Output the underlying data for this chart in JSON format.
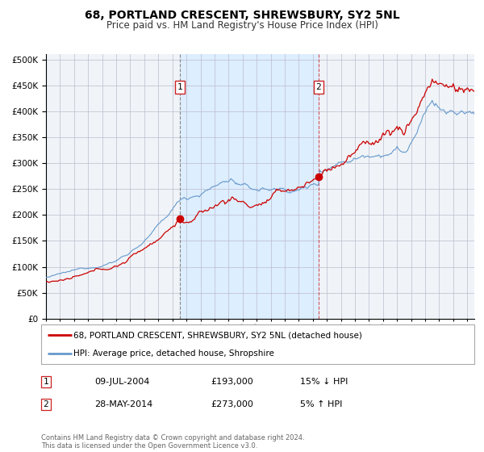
{
  "title": "68, PORTLAND CRESCENT, SHREWSBURY, SY2 5NL",
  "subtitle": "Price paid vs. HM Land Registry's House Price Index (HPI)",
  "legend_property": "68, PORTLAND CRESCENT, SHREWSBURY, SY2 5NL (detached house)",
  "legend_hpi": "HPI: Average price, detached house, Shropshire",
  "sale1_date": "09-JUL-2004",
  "sale1_price": 193000,
  "sale1_hpi_rel": "15% ↓ HPI",
  "sale1_x": 2004.52,
  "sale2_date": "28-MAY-2014",
  "sale2_price": 273000,
  "sale2_hpi_rel": "5% ↑ HPI",
  "sale2_x": 2014.41,
  "property_color": "#cc0000",
  "hpi_color": "#6699cc",
  "shade_color": "#ddeeff",
  "xlim": [
    1995,
    2025.5
  ],
  "ylim": [
    0,
    510000
  ],
  "yticks": [
    0,
    50000,
    100000,
    150000,
    200000,
    250000,
    300000,
    350000,
    400000,
    450000,
    500000
  ],
  "footer": "Contains HM Land Registry data © Crown copyright and database right 2024.\nThis data is licensed under the Open Government Licence v3.0.",
  "background_color": "#f0f4f8",
  "grid_color": "#bbbbcc",
  "title_fontsize": 10,
  "subtitle_fontsize": 8.5
}
